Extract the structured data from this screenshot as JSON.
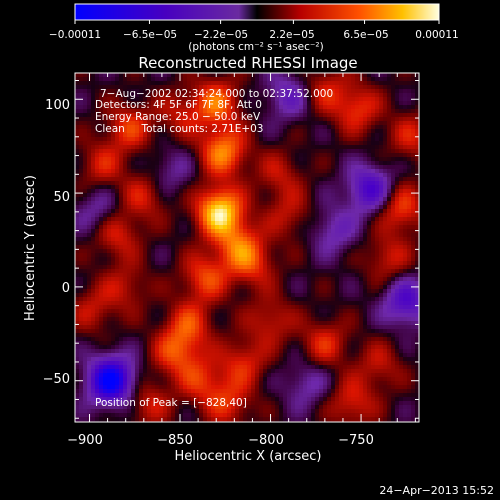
{
  "chart_data": {
    "type": "heatmap",
    "title": "Reconstructed RHESSI Image",
    "xlabel": "Heliocentric X (arcsec)",
    "ylabel": "Heliocentric Y (arcsec)",
    "xlim": [
      -908,
      -718
    ],
    "ylim": [
      -72,
      114
    ],
    "x_ticks": [
      -900,
      -850,
      -800,
      -750
    ],
    "y_ticks": [
      -50,
      0,
      50,
      100
    ],
    "x_tick_labels": [
      "−900",
      "−850",
      "−800",
      "−750"
    ],
    "y_tick_labels": [
      "−50",
      "0",
      "50",
      "100"
    ],
    "colorbar": {
      "min": -0.00011,
      "max": 0.00011,
      "ticks": [
        -0.00011,
        -6.5e-05,
        -2.2e-05,
        2.2e-05,
        6.5e-05,
        0.00011
      ],
      "tick_labels": [
        "−0.00011",
        "−6.5e−05",
        "−2.2e−05",
        "2.2e−05",
        "6.5e−05",
        "0.00011"
      ],
      "unit_label": "(photons cm⁻² s⁻¹ asec⁻²)"
    },
    "annotations": [
      "7−Aug−2002 02:34:24.000 to 02:37:52.000",
      "Detectors: 4F 5F 6F 7F 8F, Att 0",
      "Energy Range: 25.0 − 50.0 keV",
      "Clean     Total counts: 2.71E+03"
    ],
    "peak_label": "Position of Peak = [−828,40]",
    "peak": {
      "x": -828,
      "y": 40
    },
    "blobs": [
      {
        "x": -828,
        "y": 40,
        "v": 0.0001
      },
      {
        "x": -826,
        "y": 72,
        "v": 7e-05
      },
      {
        "x": -830,
        "y": 98,
        "v": 6e-05
      },
      {
        "x": -818,
        "y": 22,
        "v": 5e-05
      },
      {
        "x": -836,
        "y": 5,
        "v": 5e-05
      },
      {
        "x": -845,
        "y": -20,
        "v": 4.5e-05
      },
      {
        "x": -852,
        "y": -35,
        "v": 5e-05
      },
      {
        "x": -838,
        "y": -50,
        "v": 4e-05
      },
      {
        "x": -823,
        "y": -62,
        "v": 4e-05
      },
      {
        "x": -815,
        "y": -40,
        "v": 4e-05
      },
      {
        "x": -810,
        "y": 12,
        "v": 4e-05
      },
      {
        "x": -800,
        "y": -18,
        "v": 3.5e-05
      },
      {
        "x": -770,
        "y": -30,
        "v": 4e-05
      },
      {
        "x": -755,
        "y": -62,
        "v": 4e-05
      },
      {
        "x": -740,
        "y": -42,
        "v": 3e-05
      },
      {
        "x": -728,
        "y": 42,
        "v": 5e-05
      },
      {
        "x": -735,
        "y": 15,
        "v": 3.5e-05
      },
      {
        "x": -752,
        "y": 95,
        "v": 4.5e-05
      },
      {
        "x": -770,
        "y": 105,
        "v": 3.5e-05
      },
      {
        "x": -722,
        "y": 80,
        "v": 3.5e-05
      },
      {
        "x": -878,
        "y": 85,
        "v": 4.5e-05
      },
      {
        "x": -893,
        "y": 65,
        "v": 3.5e-05
      },
      {
        "x": -885,
        "y": 28,
        "v": 4e-05
      },
      {
        "x": -870,
        "y": 48,
        "v": 3.5e-05
      },
      {
        "x": -880,
        "y": 0,
        "v": 3e-05
      },
      {
        "x": -898,
        "y": -12,
        "v": 3e-05
      },
      {
        "x": -868,
        "y": -62,
        "v": 3.5e-05
      },
      {
        "x": -795,
        "y": 60,
        "v": 3e-05
      },
      {
        "x": -790,
        "y": 38,
        "v": 3e-05
      },
      {
        "x": -850,
        "y": 92,
        "v": 3e-05
      },
      {
        "x": -888,
        "y": -50,
        "v": -0.00011
      },
      {
        "x": -745,
        "y": 52,
        "v": -6.5e-05
      },
      {
        "x": -725,
        "y": -8,
        "v": -6e-05
      },
      {
        "x": -790,
        "y": 102,
        "v": -4e-05
      },
      {
        "x": -765,
        "y": 30,
        "v": -3.5e-05
      },
      {
        "x": -895,
        "y": 40,
        "v": -3e-05
      },
      {
        "x": -855,
        "y": 62,
        "v": -2.5e-05
      },
      {
        "x": -780,
        "y": -52,
        "v": -3e-05
      }
    ]
  }
}
